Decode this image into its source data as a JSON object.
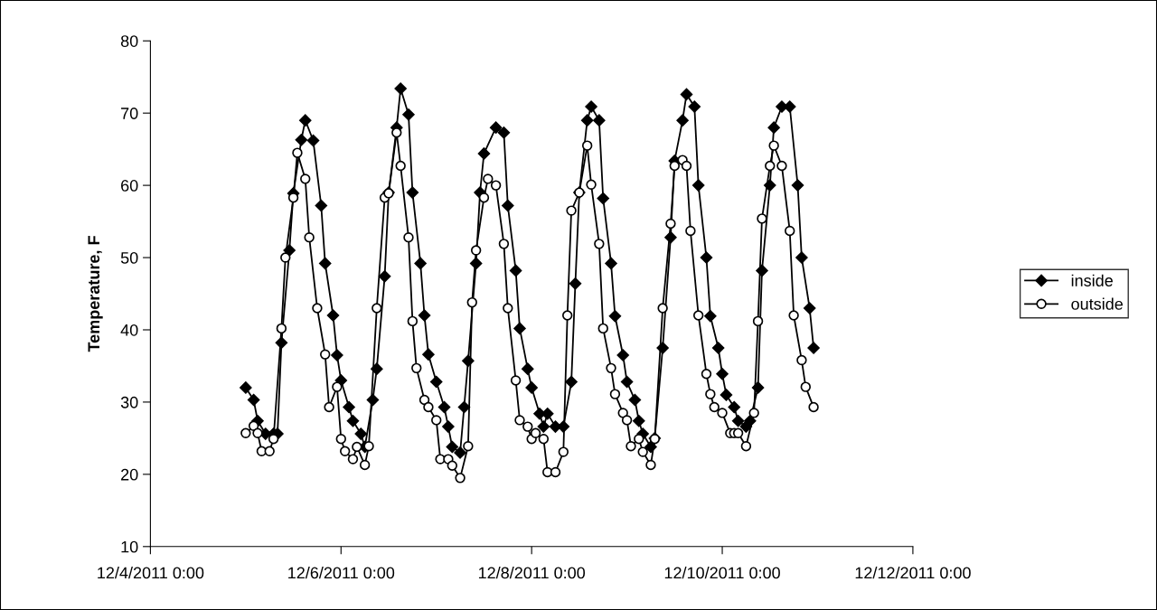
{
  "chart_data": {
    "type": "line",
    "ylabel": "Temperature, F",
    "xlim": [
      "2011-12-04T00:00",
      "2011-12-12T00:00"
    ],
    "xticks": [
      {
        "value": "2011-12-04T00:00",
        "label": "12/4/2011 0:00"
      },
      {
        "value": "2011-12-06T00:00",
        "label": "12/6/2011 0:00"
      },
      {
        "value": "2011-12-08T00:00",
        "label": "12/8/2011 0:00"
      },
      {
        "value": "2011-12-10T00:00",
        "label": "12/10/2011 0:00"
      },
      {
        "value": "2011-12-12T00:00",
        "label": "12/12/2011 0:00"
      }
    ],
    "ylim": [
      10,
      80
    ],
    "yticks": [
      10,
      20,
      30,
      40,
      50,
      60,
      70,
      80
    ],
    "grid": false,
    "legend": "right",
    "line_style": "solid",
    "series": [
      {
        "name": "inside",
        "color": "#000000",
        "marker": "diamond",
        "x": [
          "2011-12-05T00:00",
          "2011-12-05T02:00",
          "2011-12-05T03:00",
          "2011-12-05T05:00",
          "2011-12-05T07:00",
          "2011-12-05T08:00",
          "2011-12-05T09:00",
          "2011-12-05T11:00",
          "2011-12-05T12:00",
          "2011-12-05T14:00",
          "2011-12-05T15:00",
          "2011-12-05T17:00",
          "2011-12-05T19:00",
          "2011-12-05T20:00",
          "2011-12-05T22:00",
          "2011-12-05T23:00",
          "2011-12-06T00:00",
          "2011-12-06T02:00",
          "2011-12-06T03:00",
          "2011-12-06T05:00",
          "2011-12-06T06:00",
          "2011-12-06T08:00",
          "2011-12-06T09:00",
          "2011-12-06T11:00",
          "2011-12-06T12:00",
          "2011-12-06T14:00",
          "2011-12-06T15:00",
          "2011-12-06T17:00",
          "2011-12-06T18:00",
          "2011-12-06T20:00",
          "2011-12-06T21:00",
          "2011-12-06T22:00",
          "2011-12-07T00:00",
          "2011-12-07T02:00",
          "2011-12-07T03:00",
          "2011-12-07T04:00",
          "2011-12-07T06:00",
          "2011-12-07T07:00",
          "2011-12-07T08:00",
          "2011-12-07T10:00",
          "2011-12-07T11:00",
          "2011-12-07T12:00",
          "2011-12-07T15:00",
          "2011-12-07T17:00",
          "2011-12-07T18:00",
          "2011-12-07T20:00",
          "2011-12-07T21:00",
          "2011-12-07T23:00",
          "2011-12-08T00:00",
          "2011-12-08T02:00",
          "2011-12-08T03:00",
          "2011-12-08T04:00",
          "2011-12-08T06:00",
          "2011-12-08T08:00",
          "2011-12-08T10:00",
          "2011-12-08T11:00",
          "2011-12-08T12:00",
          "2011-12-08T14:00",
          "2011-12-08T15:00",
          "2011-12-08T17:00",
          "2011-12-08T18:00",
          "2011-12-08T20:00",
          "2011-12-08T21:00",
          "2011-12-08T23:00",
          "2011-12-09T00:00",
          "2011-12-09T02:00",
          "2011-12-09T03:00",
          "2011-12-09T04:00",
          "2011-12-09T06:00",
          "2011-12-09T07:00",
          "2011-12-09T09:00",
          "2011-12-09T11:00",
          "2011-12-09T12:00",
          "2011-12-09T14:00",
          "2011-12-09T15:00",
          "2011-12-09T17:00",
          "2011-12-09T18:00",
          "2011-12-09T20:00",
          "2011-12-09T21:00",
          "2011-12-09T23:00",
          "2011-12-10T00:00",
          "2011-12-10T01:00",
          "2011-12-10T03:00",
          "2011-12-10T04:00",
          "2011-12-10T06:00",
          "2011-12-10T07:00",
          "2011-12-10T09:00",
          "2011-12-10T10:00",
          "2011-12-10T12:00",
          "2011-12-10T13:00",
          "2011-12-10T15:00",
          "2011-12-10T17:00",
          "2011-12-10T19:00",
          "2011-12-10T20:00",
          "2011-12-10T22:00",
          "2011-12-10T23:00"
        ],
        "values": [
          32,
          30.3,
          27.4,
          25.6,
          25.6,
          25.6,
          38.2,
          51,
          58.9,
          66.3,
          69,
          66.2,
          57.2,
          49.2,
          42,
          36.5,
          33,
          29.3,
          27.4,
          25.6,
          23.8,
          30.3,
          34.6,
          47.4,
          59,
          68,
          73.4,
          69.8,
          59,
          49.2,
          42,
          36.6,
          32.8,
          29.3,
          26.6,
          23.8,
          23,
          29.3,
          35.7,
          49.2,
          59,
          64.4,
          68,
          67.3,
          57.2,
          48.2,
          40.2,
          34.6,
          32,
          28.4,
          26.6,
          28.4,
          26.6,
          26.6,
          32.8,
          46.4,
          59,
          69,
          70.9,
          69,
          58.2,
          49.2,
          41.9,
          36.5,
          32.8,
          30.3,
          27.4,
          25.6,
          23.8,
          25,
          37.5,
          52.8,
          63.4,
          69,
          72.6,
          70.9,
          60,
          50,
          41.9,
          37.5,
          33.9,
          31,
          29.3,
          27.4,
          26.6,
          27.4,
          32,
          48.2,
          60,
          68,
          70.9,
          70.9,
          60,
          50,
          43,
          37.5
        ]
      },
      {
        "name": "outside",
        "color": "#000000",
        "marker": "circle",
        "x": [
          "2011-12-05T00:00",
          "2011-12-05T02:00",
          "2011-12-05T03:00",
          "2011-12-05T04:00",
          "2011-12-05T06:00",
          "2011-12-05T07:00",
          "2011-12-05T09:00",
          "2011-12-05T10:00",
          "2011-12-05T12:00",
          "2011-12-05T13:00",
          "2011-12-05T15:00",
          "2011-12-05T16:00",
          "2011-12-05T18:00",
          "2011-12-05T20:00",
          "2011-12-05T21:00",
          "2011-12-05T23:00",
          "2011-12-06T00:00",
          "2011-12-06T01:00",
          "2011-12-06T03:00",
          "2011-12-06T04:00",
          "2011-12-06T06:00",
          "2011-12-06T07:00",
          "2011-12-06T09:00",
          "2011-12-06T11:00",
          "2011-12-06T12:00",
          "2011-12-06T14:00",
          "2011-12-06T15:00",
          "2011-12-06T17:00",
          "2011-12-06T18:00",
          "2011-12-06T19:00",
          "2011-12-06T21:00",
          "2011-12-06T22:00",
          "2011-12-07T00:00",
          "2011-12-07T01:00",
          "2011-12-07T03:00",
          "2011-12-07T04:00",
          "2011-12-07T06:00",
          "2011-12-07T08:00",
          "2011-12-07T09:00",
          "2011-12-07T10:00",
          "2011-12-07T12:00",
          "2011-12-07T13:00",
          "2011-12-07T15:00",
          "2011-12-07T17:00",
          "2011-12-07T18:00",
          "2011-12-07T20:00",
          "2011-12-07T21:00",
          "2011-12-07T23:00",
          "2011-12-08T00:00",
          "2011-12-08T01:00",
          "2011-12-08T03:00",
          "2011-12-08T04:00",
          "2011-12-08T06:00",
          "2011-12-08T08:00",
          "2011-12-08T09:00",
          "2011-12-08T10:00",
          "2011-12-08T12:00",
          "2011-12-08T14:00",
          "2011-12-08T15:00",
          "2011-12-08T17:00",
          "2011-12-08T18:00",
          "2011-12-08T20:00",
          "2011-12-08T21:00",
          "2011-12-08T23:00",
          "2011-12-09T00:00",
          "2011-12-09T01:00",
          "2011-12-09T03:00",
          "2011-12-09T04:00",
          "2011-12-09T06:00",
          "2011-12-09T07:00",
          "2011-12-09T09:00",
          "2011-12-09T11:00",
          "2011-12-09T12:00",
          "2011-12-09T14:00",
          "2011-12-09T15:00",
          "2011-12-09T16:00",
          "2011-12-09T18:00",
          "2011-12-09T20:00",
          "2011-12-09T21:00",
          "2011-12-09T22:00",
          "2011-12-10T00:00",
          "2011-12-10T02:00",
          "2011-12-10T03:00",
          "2011-12-10T04:00",
          "2011-12-10T06:00",
          "2011-12-10T08:00",
          "2011-12-10T09:00",
          "2011-12-10T10:00",
          "2011-12-10T12:00",
          "2011-12-10T13:00",
          "2011-12-10T15:00",
          "2011-12-10T17:00",
          "2011-12-10T18:00",
          "2011-12-10T20:00",
          "2011-12-10T21:00",
          "2011-12-10T23:00"
        ],
        "values": [
          25.7,
          26.7,
          25.7,
          23.2,
          23.2,
          24.9,
          40.2,
          50,
          58.3,
          64.5,
          60.9,
          52.8,
          43,
          36.6,
          29.3,
          32.1,
          24.9,
          23.2,
          22.1,
          23.8,
          21.3,
          23.9,
          43,
          58.3,
          58.9,
          67.3,
          62.7,
          52.8,
          41.2,
          34.7,
          30.3,
          29.3,
          27.5,
          22.1,
          22.1,
          21.2,
          19.5,
          23.9,
          43.8,
          51,
          58.3,
          60.9,
          60,
          51.9,
          43,
          33,
          27.5,
          26.6,
          24.9,
          25.7,
          24.9,
          20.3,
          20.3,
          23.1,
          42,
          56.5,
          59,
          65.5,
          60.1,
          51.9,
          40.2,
          34.7,
          31.1,
          28.5,
          27.5,
          23.9,
          24.9,
          23.1,
          21.3,
          24.9,
          43,
          54.7,
          62.7,
          63.5,
          62.7,
          53.7,
          42,
          33.9,
          31.1,
          29.3,
          28.5,
          25.7,
          25.7,
          25.7,
          23.9,
          28.5,
          41.2,
          55.4,
          62.7,
          65.5,
          62.7,
          53.7,
          42,
          35.8,
          32.1,
          29.3
        ]
      }
    ]
  }
}
